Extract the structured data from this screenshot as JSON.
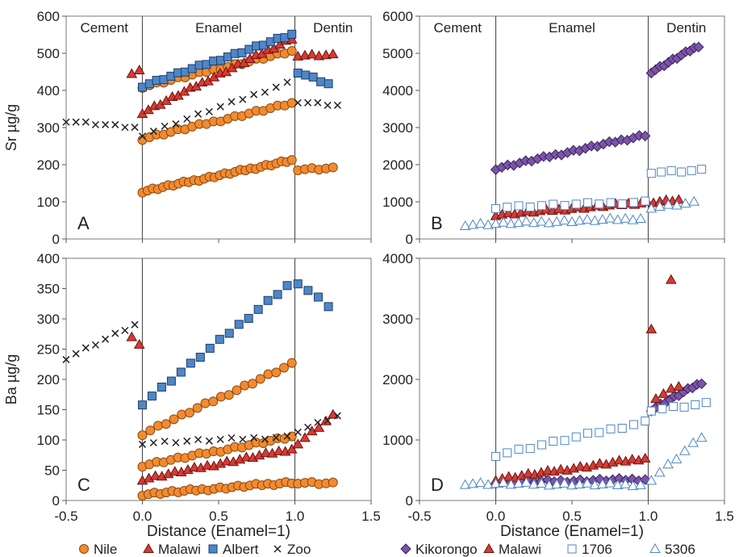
{
  "figure": {
    "x_axis_label": "Distance (Enamel=1)",
    "legend_left": [
      {
        "name": "Nile",
        "marker": "circle",
        "color": "#F28A30",
        "stroke": "#8a4a10"
      },
      {
        "name": "Malawi",
        "marker": "triangle",
        "color": "#D83A34",
        "stroke": "#6a1410"
      },
      {
        "name": "Albert",
        "marker": "square",
        "color": "#4F86C6",
        "stroke": "#1f3f6a"
      },
      {
        "name": "Zoo",
        "marker": "x",
        "color": "#222222",
        "stroke": "#222222"
      }
    ],
    "legend_right": [
      {
        "name": "Kikorongo",
        "marker": "diamond",
        "color": "#7B55A8",
        "stroke": "#3b2260"
      },
      {
        "name": "Malawi",
        "marker": "triangle",
        "color": "#D83A34",
        "stroke": "#6a1410"
      },
      {
        "name": "1706",
        "marker": "open-square",
        "color": "#ffffff",
        "stroke": "#4F86C6"
      },
      {
        "name": "5306",
        "marker": "open-triangle",
        "color": "#ffffff",
        "stroke": "#4F86C6"
      }
    ]
  },
  "chart_data": [
    {
      "panel": "A",
      "type": "scatter",
      "ylabel": "Sr   µg/g",
      "ylim": [
        0,
        600
      ],
      "yticks": [
        0,
        100,
        200,
        300,
        400,
        500,
        600
      ],
      "xlim": [
        -0.5,
        1.5
      ],
      "xticks": [
        "-0.5",
        "0.0",
        "0.5",
        "1.0",
        "1.5"
      ],
      "show_xticks": false,
      "region_labels": [
        "Cement",
        "Enamel",
        "Dentin"
      ],
      "boundaries": [
        0,
        1
      ],
      "series": [
        {
          "name": "Nile",
          "marker": "circle",
          "lines": [
            {
              "x0": 0,
              "x1": 0.98,
              "y0": 410,
              "y1": 505,
              "n": 22
            },
            {
              "x0": 0,
              "x1": 0.98,
              "y0": 270,
              "y1": 365,
              "n": 22
            },
            {
              "x0": 0,
              "x1": 0.98,
              "y0": 128,
              "y1": 212,
              "n": 30
            },
            {
              "x0": 1.02,
              "x1": 1.25,
              "y0": 188,
              "y1": 190,
              "n": 6
            }
          ]
        },
        {
          "name": "Malawi",
          "marker": "triangle",
          "lines": [
            {
              "x0": -0.07,
              "x1": -0.02,
              "y0": 448,
              "y1": 455,
              "n": 2
            },
            {
              "x0": 0,
              "x1": 0.98,
              "y0": 340,
              "y1": 540,
              "n": 26
            },
            {
              "x0": 1.02,
              "x1": 1.25,
              "y0": 495,
              "y1": 495,
              "n": 6
            }
          ]
        },
        {
          "name": "Albert",
          "marker": "square",
          "lines": [
            {
              "x0": 0,
              "x1": 0.98,
              "y0": 412,
              "y1": 550,
              "n": 22
            },
            {
              "x0": 1.02,
              "x1": 1.22,
              "y0": 450,
              "y1": 418,
              "n": 5
            }
          ]
        },
        {
          "name": "Zoo",
          "marker": "x",
          "lines": [
            {
              "x0": -0.5,
              "x1": -0.05,
              "y0": 318,
              "y1": 300,
              "n": 8
            },
            {
              "x0": 0,
              "x1": 0.95,
              "y0": 280,
              "y1": 420,
              "n": 14
            },
            {
              "x0": 1.02,
              "x1": 1.28,
              "y0": 370,
              "y1": 360,
              "n": 5
            }
          ]
        }
      ]
    },
    {
      "panel": "B",
      "type": "scatter",
      "ylabel": "",
      "ylim": [
        0,
        6000
      ],
      "yticks": [
        0,
        1000,
        2000,
        3000,
        4000,
        5000,
        6000
      ],
      "xlim": [
        -0.5,
        1.5
      ],
      "xticks": [
        "-0.5",
        "0.0",
        "0.5",
        "1.0",
        "1.5"
      ],
      "show_xticks": false,
      "region_labels": [
        "Cement",
        "Enamel",
        "Dentin"
      ],
      "boundaries": [
        0,
        1
      ],
      "series": [
        {
          "name": "Kikorongo",
          "marker": "diamond",
          "lines": [
            {
              "x0": 0,
              "x1": 0.98,
              "y0": 1900,
              "y1": 2800,
              "n": 26
            },
            {
              "x0": 1.02,
              "x1": 1.33,
              "y0": 4500,
              "y1": 5200,
              "n": 12
            }
          ]
        },
        {
          "name": "Malawi",
          "marker": "triangle",
          "lines": [
            {
              "x0": 0,
              "x1": 1.2,
              "y0": 650,
              "y1": 1050,
              "n": 30
            }
          ]
        },
        {
          "name": "1706",
          "marker": "open-square",
          "lines": [
            {
              "x0": 0,
              "x1": 0.98,
              "y0": 850,
              "y1": 1000,
              "n": 14
            },
            {
              "x0": 1.02,
              "x1": 1.35,
              "y0": 1800,
              "y1": 1850,
              "n": 6
            }
          ]
        },
        {
          "name": "5306",
          "marker": "open-triangle",
          "lines": [
            {
              "x0": -0.2,
              "x1": 0.95,
              "y0": 380,
              "y1": 550,
              "n": 24
            },
            {
              "x0": 1.02,
              "x1": 1.3,
              "y0": 850,
              "y1": 980,
              "n": 6
            }
          ]
        }
      ]
    },
    {
      "panel": "C",
      "type": "scatter",
      "ylabel": "Ba   µg/g",
      "ylim": [
        0,
        400
      ],
      "yticks": [
        0,
        50,
        100,
        150,
        200,
        250,
        300,
        350,
        400
      ],
      "xlim": [
        -0.5,
        1.5
      ],
      "xticks": [
        "-0.5",
        "0.0",
        "0.5",
        "1.0",
        "1.5"
      ],
      "show_xticks": true,
      "region_labels": [],
      "boundaries": [
        0,
        1
      ],
      "series": [
        {
          "name": "Nile",
          "marker": "circle",
          "lines": [
            {
              "x0": 0,
              "x1": 0.98,
              "y0": 110,
              "y1": 225,
              "n": 20
            },
            {
              "x0": 0,
              "x1": 0.98,
              "y0": 58,
              "y1": 105,
              "n": 22
            },
            {
              "x0": 0,
              "x1": 0.98,
              "y0": 10,
              "y1": 30,
              "n": 26
            },
            {
              "x0": 1.02,
              "x1": 1.25,
              "y0": 30,
              "y1": 28,
              "n": 6
            }
          ]
        },
        {
          "name": "Malawi",
          "marker": "triangle",
          "lines": [
            {
              "x0": -0.07,
              "x1": -0.02,
              "y0": 272,
              "y1": 258,
              "n": 2
            },
            {
              "x0": 0,
              "x1": 0.98,
              "y0": 35,
              "y1": 85,
              "n": 24
            },
            {
              "x0": 1.02,
              "x1": 1.25,
              "y0": 95,
              "y1": 140,
              "n": 6
            }
          ]
        },
        {
          "name": "Albert",
          "marker": "square",
          "lines": [
            {
              "x0": 0,
              "x1": 0.95,
              "y0": 160,
              "y1": 355,
              "n": 16
            },
            {
              "x0": 1.02,
              "x1": 1.22,
              "y0": 360,
              "y1": 322,
              "n": 4
            }
          ]
        },
        {
          "name": "Zoo",
          "marker": "x",
          "lines": [
            {
              "x0": -0.5,
              "x1": -0.05,
              "y0": 235,
              "y1": 290,
              "n": 8
            },
            {
              "x0": 0,
              "x1": 0.95,
              "y0": 95,
              "y1": 105,
              "n": 14
            },
            {
              "x0": 1.02,
              "x1": 1.28,
              "y0": 115,
              "y1": 140,
              "n": 5
            }
          ]
        }
      ]
    },
    {
      "panel": "D",
      "type": "scatter",
      "ylabel": "",
      "ylim": [
        0,
        4000
      ],
      "yticks": [
        0,
        1000,
        2000,
        3000,
        4000
      ],
      "xlim": [
        -0.5,
        1.5
      ],
      "xticks": [
        "-0.5",
        "0.0",
        "0.5",
        "1.0",
        "1.5"
      ],
      "show_xticks": true,
      "region_labels": [],
      "boundaries": [
        0,
        1
      ],
      "series": [
        {
          "name": "Kikorongo",
          "marker": "diamond",
          "lines": [
            {
              "x0": 0,
              "x1": 0.98,
              "y0": 300,
              "y1": 350,
              "n": 24
            },
            {
              "x0": 1.02,
              "x1": 1.35,
              "y0": 1500,
              "y1": 1950,
              "n": 12
            }
          ]
        },
        {
          "name": "Malawi",
          "marker": "triangle",
          "lines": [
            {
              "x0": 0,
              "x1": 0.98,
              "y0": 350,
              "y1": 700,
              "n": 24
            },
            {
              "x0": 1.02,
              "x1": 1.15,
              "y0": 2850,
              "y1": 3650,
              "n": 2
            },
            {
              "x0": 1.05,
              "x1": 1.2,
              "y0": 1700,
              "y1": 1900,
              "n": 4
            }
          ]
        },
        {
          "name": "1706",
          "marker": "open-square",
          "lines": [
            {
              "x0": 0,
              "x1": 0.98,
              "y0": 750,
              "y1": 1300,
              "n": 14
            },
            {
              "x0": 1.02,
              "x1": 1.38,
              "y0": 1500,
              "y1": 1600,
              "n": 6
            }
          ]
        },
        {
          "name": "5306",
          "marker": "open-triangle",
          "lines": [
            {
              "x0": -0.2,
              "x1": 0.95,
              "y0": 280,
              "y1": 260,
              "n": 24
            },
            {
              "x0": 1.02,
              "x1": 1.35,
              "y0": 350,
              "y1": 1050,
              "n": 7
            }
          ]
        }
      ]
    }
  ]
}
